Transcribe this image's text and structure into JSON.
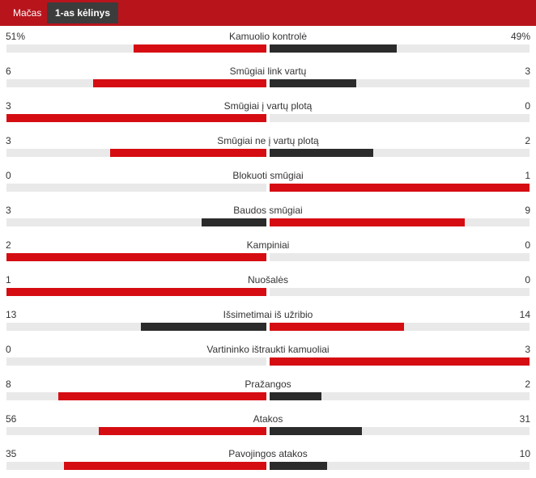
{
  "tabs": [
    {
      "label": "Mačas",
      "active": false
    },
    {
      "label": "1-as kėlinys",
      "active": true
    }
  ],
  "colors": {
    "header": "#b8141c",
    "active_tab": "#3c3c3c",
    "leader": "#d50d12",
    "trailer": "#2b2b2b",
    "track": "#e9e9e9"
  },
  "stats": [
    {
      "name": "Kamuolio kontrolė",
      "home": "51%",
      "away": "49%",
      "home_value": 51,
      "away_value": 49
    },
    {
      "name": "Smūgiai link vartų",
      "home": "6",
      "away": "3",
      "home_value": 6,
      "away_value": 3
    },
    {
      "name": "Smūgiai į vartų plotą",
      "home": "3",
      "away": "0",
      "home_value": 3,
      "away_value": 0
    },
    {
      "name": "Smūgiai ne į vartų plotą",
      "home": "3",
      "away": "2",
      "home_value": 3,
      "away_value": 2
    },
    {
      "name": "Blokuoti smūgiai",
      "home": "0",
      "away": "1",
      "home_value": 0,
      "away_value": 1
    },
    {
      "name": "Baudos smūgiai",
      "home": "3",
      "away": "9",
      "home_value": 3,
      "away_value": 9
    },
    {
      "name": "Kampiniai",
      "home": "2",
      "away": "0",
      "home_value": 2,
      "away_value": 0
    },
    {
      "name": "Nuošalės",
      "home": "1",
      "away": "0",
      "home_value": 1,
      "away_value": 0
    },
    {
      "name": "Išsimetimai iš užribio",
      "home": "13",
      "away": "14",
      "home_value": 13,
      "away_value": 14
    },
    {
      "name": "Vartininko ištraukti kamuoliai",
      "home": "0",
      "away": "3",
      "home_value": 0,
      "away_value": 3
    },
    {
      "name": "Pražangos",
      "home": "8",
      "away": "2",
      "home_value": 8,
      "away_value": 2
    },
    {
      "name": "Atakos",
      "home": "56",
      "away": "31",
      "home_value": 56,
      "away_value": 31
    },
    {
      "name": "Pavojingos atakos",
      "home": "35",
      "away": "10",
      "home_value": 35,
      "away_value": 10
    }
  ]
}
